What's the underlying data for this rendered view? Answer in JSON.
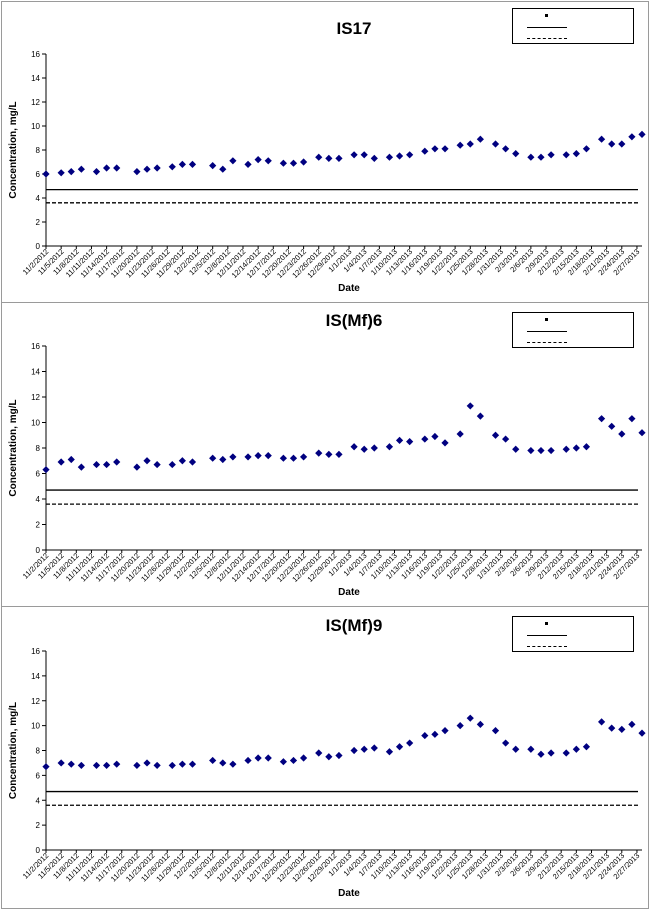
{
  "chart_data": [
    {
      "type": "scatter",
      "title": "IS17",
      "xlabel": "Date",
      "ylabel": "Concentration, mg/L",
      "ylim": [
        0,
        16
      ],
      "yticks": [
        0,
        2,
        4,
        6,
        8,
        10,
        12,
        14,
        16
      ],
      "x_tick_labels": [
        "11/2/2012",
        "11/5/2012",
        "11/8/2012",
        "11/11/2012",
        "11/14/2012",
        "11/17/2012",
        "11/20/2012",
        "11/23/2012",
        "11/26/2012",
        "11/29/2012",
        "12/2/2012",
        "12/5/2012",
        "12/8/2012",
        "12/11/2012",
        "12/14/2012",
        "12/17/2012",
        "12/20/2012",
        "12/23/2012",
        "12/26/2012",
        "12/29/2012",
        "1/1/2013",
        "1/4/2013",
        "1/7/2013",
        "1/10/2013",
        "1/13/2013",
        "1/16/2013",
        "1/19/2013",
        "1/22/2013",
        "1/25/2013",
        "1/28/2013",
        "1/31/2013",
        "2/3/2013",
        "2/6/2013",
        "2/9/2013",
        "2/12/2013",
        "2/15/2013",
        "2/18/2013",
        "2/21/2013",
        "2/24/2013",
        "2/27/2013"
      ],
      "x_range": [
        "2012-11-02",
        "2013-02-28"
      ],
      "grid": false,
      "marker_color": "#000080",
      "reference_lines": [
        {
          "style": "solid",
          "value": 4.7
        },
        {
          "style": "dashed",
          "value": 3.6
        }
      ],
      "series": [
        {
          "x": [
            "2012-11-02",
            "2012-11-05",
            "2012-11-07",
            "2012-11-09",
            "2012-11-12",
            "2012-11-14",
            "2012-11-16",
            "2012-11-20",
            "2012-11-22",
            "2012-11-24",
            "2012-11-27",
            "2012-11-29",
            "2012-12-01",
            "2012-12-05",
            "2012-12-07",
            "2012-12-09",
            "2012-12-12",
            "2012-12-14",
            "2012-12-16",
            "2012-12-19",
            "2012-12-21",
            "2012-12-23",
            "2012-12-26",
            "2012-12-28",
            "2012-12-30",
            "2013-01-02",
            "2013-01-04",
            "2013-01-06",
            "2013-01-09",
            "2013-01-11",
            "2013-01-13",
            "2013-01-16",
            "2013-01-18",
            "2013-01-20",
            "2013-01-23",
            "2013-01-25",
            "2013-01-27",
            "2013-01-30",
            "2013-02-01",
            "2013-02-03",
            "2013-02-06",
            "2013-02-08",
            "2013-02-10",
            "2013-02-13",
            "2013-02-15",
            "2013-02-17",
            "2013-02-20",
            "2013-02-22",
            "2013-02-24",
            "2013-02-26",
            "2013-02-28"
          ],
          "y": [
            6.0,
            6.1,
            6.2,
            6.4,
            6.2,
            6.5,
            6.5,
            6.2,
            6.4,
            6.5,
            6.6,
            6.8,
            6.8,
            6.7,
            6.4,
            7.1,
            6.8,
            7.2,
            7.1,
            6.9,
            6.9,
            7.0,
            7.4,
            7.3,
            7.3,
            7.6,
            7.6,
            7.3,
            7.4,
            7.5,
            7.6,
            7.9,
            8.1,
            8.1,
            8.4,
            8.5,
            8.9,
            8.5,
            8.1,
            7.7,
            7.4,
            7.4,
            7.6,
            7.6,
            7.7,
            8.1,
            8.9,
            8.5,
            8.5,
            9.1,
            9.3
          ]
        }
      ]
    },
    {
      "type": "scatter",
      "title": "IS(Mf)6",
      "xlabel": "Date",
      "ylabel": "Concentration, mg/L",
      "ylim": [
        0,
        16
      ],
      "yticks": [
        0,
        2,
        4,
        6,
        8,
        10,
        12,
        14,
        16
      ],
      "x_tick_labels": [
        "11/2/2012",
        "11/5/2012",
        "11/8/2012",
        "11/11/2012",
        "11/14/2012",
        "11/17/2012",
        "11/20/2012",
        "11/23/2012",
        "11/26/2012",
        "11/29/2012",
        "12/2/2012",
        "12/5/2012",
        "12/8/2012",
        "12/11/2012",
        "12/14/2012",
        "12/17/2012",
        "12/20/2012",
        "12/23/2012",
        "12/26/2012",
        "12/29/2012",
        "1/1/2013",
        "1/4/2013",
        "1/7/2013",
        "1/10/2013",
        "1/13/2013",
        "1/16/2013",
        "1/19/2013",
        "1/22/2013",
        "1/25/2013",
        "1/28/2013",
        "1/31/2013",
        "2/3/2013",
        "2/6/2013",
        "2/9/2013",
        "2/12/2013",
        "2/15/2013",
        "2/18/2013",
        "2/21/2013",
        "2/24/2013",
        "2/27/2013"
      ],
      "x_range": [
        "2012-11-02",
        "2013-02-28"
      ],
      "grid": false,
      "marker_color": "#000080",
      "reference_lines": [
        {
          "style": "solid",
          "value": 4.7
        },
        {
          "style": "dashed",
          "value": 3.6
        }
      ],
      "series": [
        {
          "x": [
            "2012-11-02",
            "2012-11-05",
            "2012-11-07",
            "2012-11-09",
            "2012-11-12",
            "2012-11-14",
            "2012-11-16",
            "2012-11-20",
            "2012-11-22",
            "2012-11-24",
            "2012-11-27",
            "2012-11-29",
            "2012-12-01",
            "2012-12-05",
            "2012-12-07",
            "2012-12-09",
            "2012-12-12",
            "2012-12-14",
            "2012-12-16",
            "2012-12-19",
            "2012-12-21",
            "2012-12-23",
            "2012-12-26",
            "2012-12-28",
            "2012-12-30",
            "2013-01-02",
            "2013-01-04",
            "2013-01-06",
            "2013-01-09",
            "2013-01-11",
            "2013-01-13",
            "2013-01-16",
            "2013-01-18",
            "2013-01-20",
            "2013-01-23",
            "2013-01-25",
            "2013-01-27",
            "2013-01-30",
            "2013-02-01",
            "2013-02-03",
            "2013-02-06",
            "2013-02-08",
            "2013-02-10",
            "2013-02-13",
            "2013-02-15",
            "2013-02-17",
            "2013-02-20",
            "2013-02-22",
            "2013-02-24",
            "2013-02-26",
            "2013-02-28"
          ],
          "y": [
            6.3,
            6.9,
            7.1,
            6.5,
            6.7,
            6.7,
            6.9,
            6.5,
            7.0,
            6.7,
            6.7,
            7.0,
            6.9,
            7.2,
            7.1,
            7.3,
            7.3,
            7.4,
            7.4,
            7.2,
            7.2,
            7.3,
            7.6,
            7.5,
            7.5,
            8.1,
            7.9,
            8.0,
            8.1,
            8.6,
            8.5,
            8.7,
            8.9,
            8.4,
            9.1,
            11.3,
            10.5,
            9.0,
            8.7,
            7.9,
            7.8,
            7.8,
            7.8,
            7.9,
            8.0,
            8.1,
            10.3,
            9.7,
            9.1,
            10.3,
            9.2
          ]
        }
      ]
    },
    {
      "type": "scatter",
      "title": "IS(Mf)9",
      "xlabel": "Date",
      "ylabel": "Concentration, mg/L",
      "ylim": [
        0,
        16
      ],
      "yticks": [
        0,
        2,
        4,
        6,
        8,
        10,
        12,
        14,
        16
      ],
      "x_tick_labels": [
        "11/2/2012",
        "11/5/2012",
        "11/8/2012",
        "11/11/2012",
        "11/14/2012",
        "11/17/2012",
        "11/20/2012",
        "11/23/2012",
        "11/26/2012",
        "11/29/2012",
        "12/2/2012",
        "12/5/2012",
        "12/8/2012",
        "12/11/2012",
        "12/14/2012",
        "12/17/2012",
        "12/20/2012",
        "12/23/2012",
        "12/26/2012",
        "12/29/2012",
        "1/1/2013",
        "1/4/2013",
        "1/7/2013",
        "1/10/2013",
        "1/13/2013",
        "1/16/2013",
        "1/19/2013",
        "1/22/2013",
        "1/25/2013",
        "1/28/2013",
        "1/31/2013",
        "2/3/2013",
        "2/6/2013",
        "2/9/2013",
        "2/12/2013",
        "2/15/2013",
        "2/18/2013",
        "2/21/2013",
        "2/24/2013",
        "2/27/2013"
      ],
      "x_range": [
        "2012-11-02",
        "2013-02-28"
      ],
      "grid": false,
      "marker_color": "#000080",
      "reference_lines": [
        {
          "style": "solid",
          "value": 4.7
        },
        {
          "style": "dashed",
          "value": 3.6
        }
      ],
      "series": [
        {
          "x": [
            "2012-11-02",
            "2012-11-05",
            "2012-11-07",
            "2012-11-09",
            "2012-11-12",
            "2012-11-14",
            "2012-11-16",
            "2012-11-20",
            "2012-11-22",
            "2012-11-24",
            "2012-11-27",
            "2012-11-29",
            "2012-12-01",
            "2012-12-05",
            "2012-12-07",
            "2012-12-09",
            "2012-12-12",
            "2012-12-14",
            "2012-12-16",
            "2012-12-19",
            "2012-12-21",
            "2012-12-23",
            "2012-12-26",
            "2012-12-28",
            "2012-12-30",
            "2013-01-02",
            "2013-01-04",
            "2013-01-06",
            "2013-01-09",
            "2013-01-11",
            "2013-01-13",
            "2013-01-16",
            "2013-01-18",
            "2013-01-20",
            "2013-01-23",
            "2013-01-25",
            "2013-01-27",
            "2013-01-30",
            "2013-02-01",
            "2013-02-03",
            "2013-02-06",
            "2013-02-08",
            "2013-02-10",
            "2013-02-13",
            "2013-02-15",
            "2013-02-17",
            "2013-02-20",
            "2013-02-22",
            "2013-02-24",
            "2013-02-26",
            "2013-02-28"
          ],
          "y": [
            6.7,
            7.0,
            6.9,
            6.8,
            6.8,
            6.8,
            6.9,
            6.8,
            7.0,
            6.8,
            6.8,
            6.9,
            6.9,
            7.2,
            7.0,
            6.9,
            7.2,
            7.4,
            7.4,
            7.1,
            7.2,
            7.4,
            7.8,
            7.5,
            7.6,
            8.0,
            8.1,
            8.2,
            7.9,
            8.3,
            8.6,
            9.2,
            9.3,
            9.6,
            10.0,
            10.6,
            10.1,
            9.6,
            8.6,
            8.1,
            8.1,
            7.7,
            7.8,
            7.8,
            8.1,
            8.3,
            10.3,
            9.8,
            9.7,
            10.1,
            9.4
          ]
        }
      ]
    }
  ]
}
